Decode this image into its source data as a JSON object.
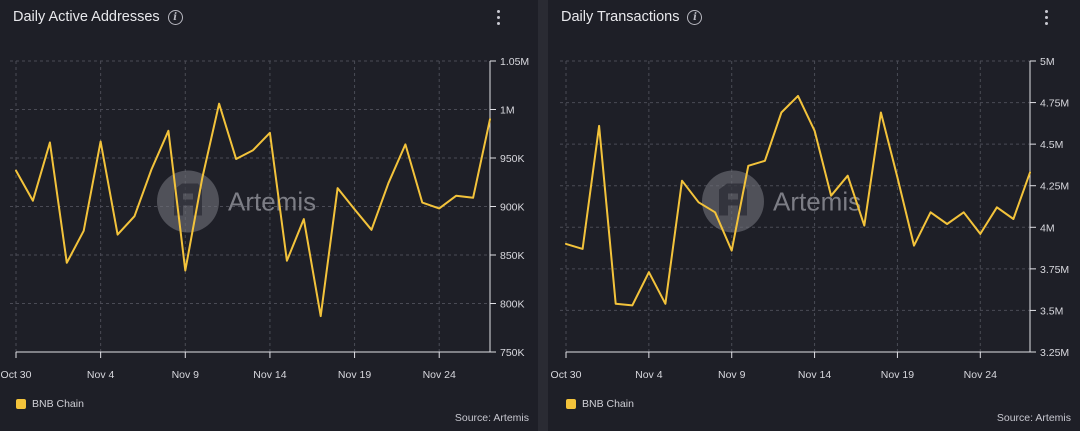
{
  "colors": {
    "series": "#f3c33b",
    "grid": "#4a4b55",
    "background": "#1e1f27"
  },
  "watermark": {
    "text": "Artemis"
  },
  "charts": [
    {
      "title": "Daily Active Addresses",
      "legend_label": "BNB Chain",
      "source": "Source: Artemis",
      "icons": {
        "info": "info-icon",
        "more": "more-vertical-icon"
      }
    },
    {
      "title": "Daily Transactions",
      "legend_label": "BNB Chain",
      "source": "Source: Artemis",
      "icons": {
        "info": "info-icon",
        "more": "more-vertical-icon"
      }
    }
  ],
  "chart_data": [
    {
      "type": "line",
      "title": "Daily Active Addresses",
      "xlabel": "",
      "ylabel": "",
      "ylim": [
        750000,
        1050000
      ],
      "yticks": [
        750000,
        800000,
        850000,
        900000,
        950000,
        1000000,
        1050000
      ],
      "ytick_labels": [
        "750K",
        "800K",
        "850K",
        "900K",
        "950K",
        "1M",
        "1.05M"
      ],
      "x_tick_labels": [
        "Oct 30",
        "Nov 4",
        "Nov 9",
        "Nov 14",
        "Nov 19",
        "Nov 24"
      ],
      "x_tick_index": [
        0,
        5,
        10,
        15,
        20,
        25
      ],
      "legend": "bottom-left",
      "grid": true,
      "series": [
        {
          "name": "BNB Chain",
          "values": [
            937000,
            906000,
            966000,
            842000,
            875000,
            967000,
            871000,
            890000,
            938000,
            978000,
            834000,
            929000,
            1006000,
            949000,
            958000,
            976000,
            844000,
            887000,
            787000,
            919000,
            897000,
            876000,
            924000,
            964000,
            904000,
            898000,
            911000,
            909000,
            990000
          ]
        }
      ]
    },
    {
      "type": "line",
      "title": "Daily Transactions",
      "xlabel": "",
      "ylabel": "",
      "ylim": [
        3250000,
        5000000
      ],
      "yticks": [
        3250000,
        3500000,
        3750000,
        4000000,
        4250000,
        4500000,
        4750000,
        5000000
      ],
      "ytick_labels": [
        "3.25M",
        "3.5M",
        "3.75M",
        "4M",
        "4.25M",
        "4.5M",
        "4.75M",
        "5M"
      ],
      "x_tick_labels": [
        "Oct 30",
        "Nov 4",
        "Nov 9",
        "Nov 14",
        "Nov 19",
        "Nov 24"
      ],
      "x_tick_index": [
        0,
        5,
        10,
        15,
        20,
        25
      ],
      "legend": "bottom-left",
      "grid": true,
      "series": [
        {
          "name": "BNB Chain",
          "values": [
            3900000,
            3870000,
            4610000,
            3540000,
            3530000,
            3730000,
            3540000,
            4280000,
            4150000,
            4090000,
            3860000,
            4370000,
            4400000,
            4690000,
            4790000,
            4580000,
            4190000,
            4310000,
            4010000,
            4690000,
            4300000,
            3890000,
            4090000,
            4020000,
            4090000,
            3960000,
            4120000,
            4050000,
            4330000
          ]
        }
      ]
    }
  ]
}
